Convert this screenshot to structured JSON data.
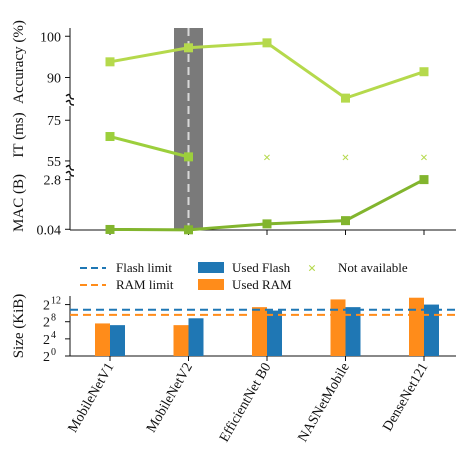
{
  "chart_data": [
    {
      "type": "line",
      "panel": "top",
      "categories": [
        "MobileNetV1",
        "MobileNetV2",
        "EfficientNet B0",
        "NASNetMobile",
        "DenseNet121"
      ],
      "highlight_category": "MobileNetV2",
      "y_axis_labels": [
        "Accuracy (%)",
        "IT (ms)",
        "MAC (B)"
      ],
      "accuracy": {
        "ylabel": "Accuracy (%)",
        "ylim": [
          86,
          102
        ],
        "ticks": [
          "100",
          "90"
        ],
        "tick_values": [
          100,
          90
        ],
        "values": [
          93.8,
          97.2,
          98.4,
          85.0,
          91.4
        ],
        "color": "#b5d94c"
      },
      "inference_time": {
        "ylabel": "IT (ms)",
        "ylim": [
          53,
          82
        ],
        "ticks": [
          "75",
          "55"
        ],
        "tick_values": [
          75,
          55
        ],
        "values": [
          67,
          57,
          null,
          null,
          null
        ],
        "color": "#9ccf3c"
      },
      "mac": {
        "ylabel": "MAC (B)",
        "ylim": [
          0.0,
          3.0
        ],
        "ticks": [
          "2.8",
          "0.04"
        ],
        "tick_values": [
          2.8,
          0.04
        ],
        "values": [
          0.03,
          0.01,
          0.34,
          0.52,
          2.8
        ],
        "color": "#82b52e"
      },
      "not_available_marker": "×",
      "not_available_color": "#b5d94c"
    },
    {
      "type": "bar",
      "panel": "bottom",
      "categories": [
        "MobileNetV1",
        "MobileNetV2",
        "EfficientNet B0",
        "NASNetMobile",
        "DenseNet121"
      ],
      "ylabel": "Size (KiB)",
      "ylim_log2": [
        0,
        14
      ],
      "ticks": [
        {
          "base": "2",
          "exp": "12",
          "value": 12
        },
        {
          "base": "2",
          "exp": "8",
          "value": 8
        },
        {
          "base": "2",
          "exp": "4",
          "value": 4
        },
        {
          "base": "2",
          "exp": "0",
          "value": 0
        }
      ],
      "flash_limit_log2": 10.8,
      "ram_limit_log2": 9.6,
      "series": [
        {
          "name": "Used RAM",
          "color": "#ff8c1a",
          "values_log2": [
            7.6,
            7.2,
            11.4,
            13.2,
            13.6
          ]
        },
        {
          "name": "Used Flash",
          "color": "#1f77b4",
          "values_log2": [
            7.2,
            8.8,
            10.6,
            11.4,
            12.0
          ]
        }
      ]
    }
  ],
  "legend": {
    "flash_limit": "Flash limit",
    "ram_limit": "RAM limit",
    "used_flash": "Used Flash",
    "used_ram": "Used RAM",
    "not_available": "Not available"
  },
  "colors": {
    "flash_limit": "#1f77b4",
    "ram_limit": "#ff8c1a",
    "used_flash": "#1f77b4",
    "used_ram": "#ff8c1a",
    "not_available": "#b5d94c",
    "highlight_band": "#7a7a7a",
    "highlight_dash": "#d9d9d9"
  }
}
